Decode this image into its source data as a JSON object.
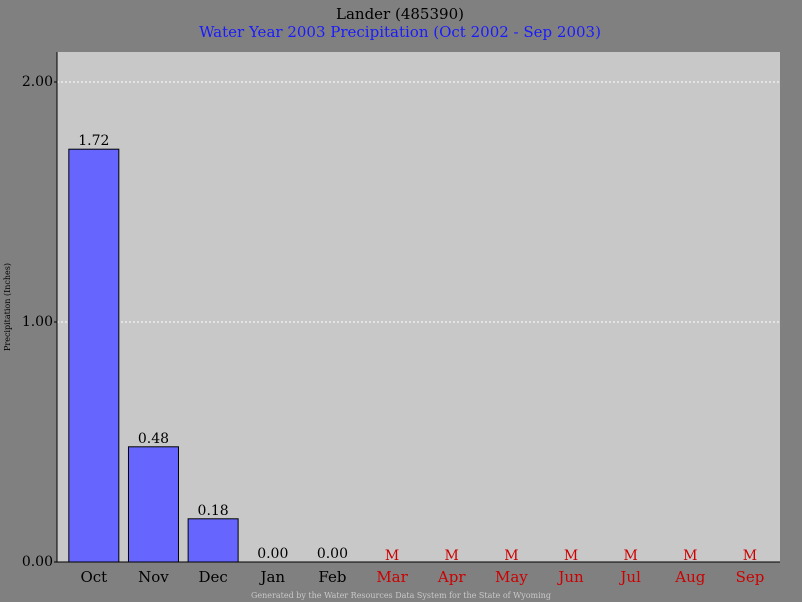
{
  "chart_data": {
    "type": "bar",
    "title": "Lander (485390)",
    "subtitle": "Water Year 2003 Precipitation (Oct 2002 - Sep 2003)",
    "y_label": "Precipitation (Inches)",
    "footer": "Generated by the Water Resources Data System for the State of Wyoming",
    "categories": [
      "Oct",
      "Nov",
      "Dec",
      "Jan",
      "Feb",
      "Mar",
      "Apr",
      "May",
      "Jun",
      "Jul",
      "Aug",
      "Sep"
    ],
    "values": [
      1.72,
      0.48,
      0.18,
      0.0,
      0.0,
      null,
      null,
      null,
      null,
      null,
      null,
      null
    ],
    "value_labels": [
      "1.72",
      "0.48",
      "0.18",
      "0.00",
      "0.00",
      "M",
      "M",
      "M",
      "M",
      "M",
      "M",
      "M"
    ],
    "label_colors": [
      "#000000",
      "#000000",
      "#000000",
      "#000000",
      "#000000",
      "#cc0000",
      "#cc0000",
      "#cc0000",
      "#cc0000",
      "#cc0000",
      "#cc0000",
      "#cc0000"
    ],
    "color": "#6666ff",
    "ylim": [
      0,
      2.125
    ],
    "yticks": [
      {
        "value": 0,
        "label": "0.00"
      },
      {
        "value": 1,
        "label": "1.00"
      },
      {
        "value": 2,
        "label": "2.00"
      }
    ],
    "grid": true
  }
}
